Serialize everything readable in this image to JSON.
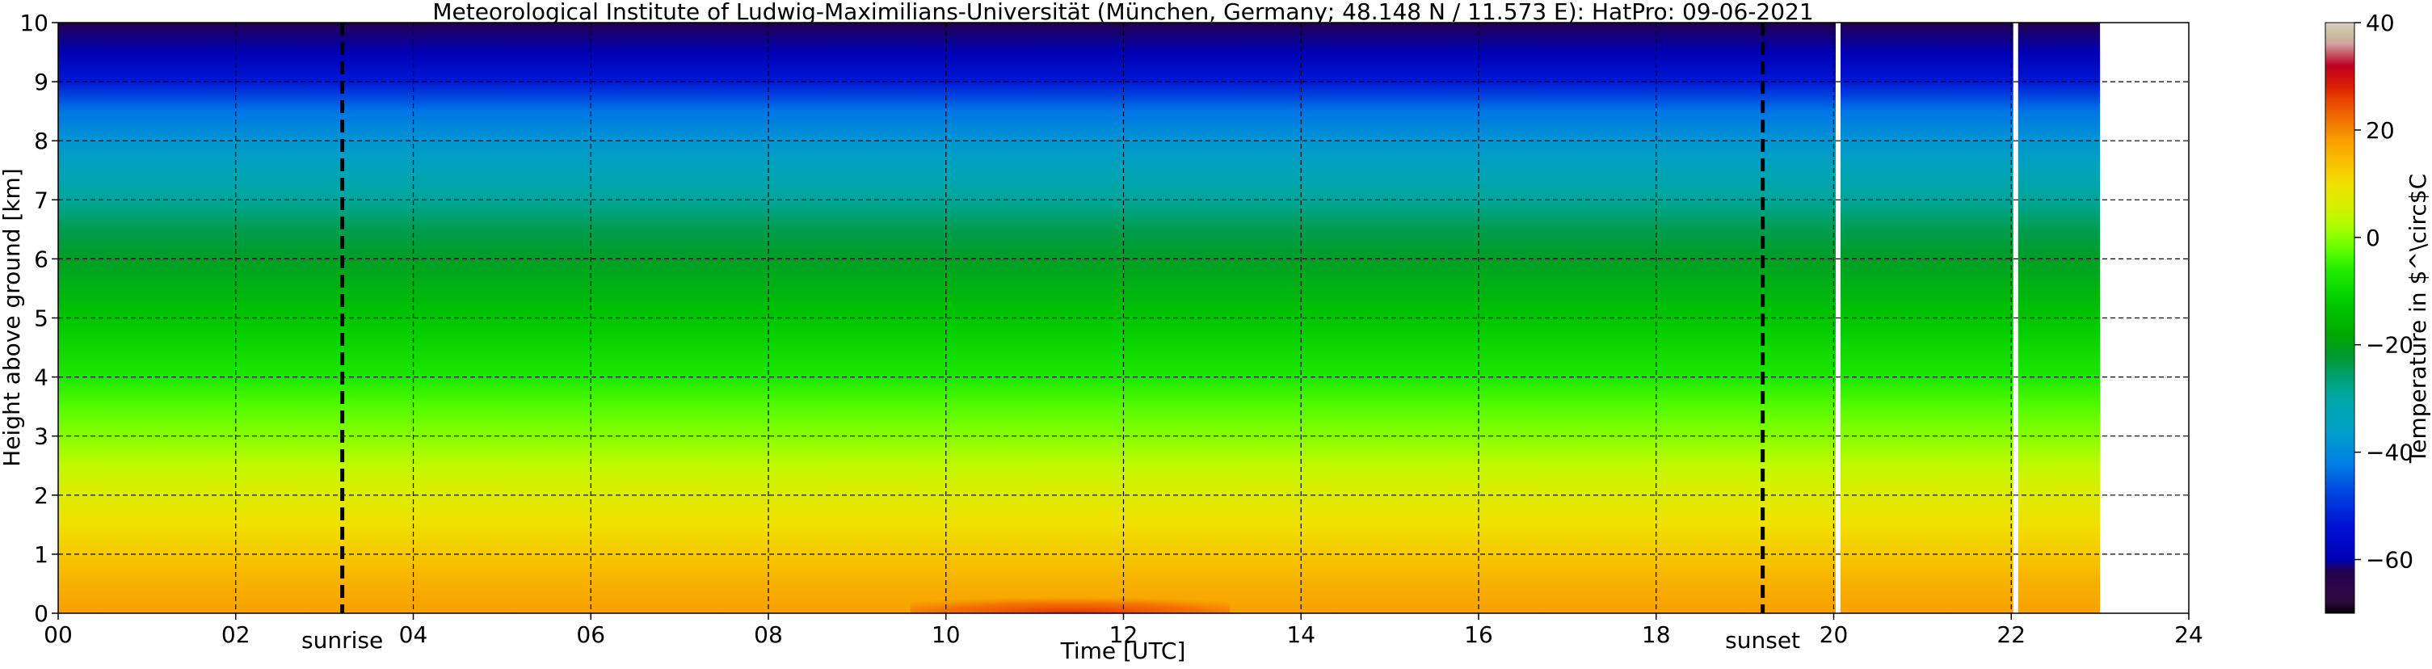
{
  "chart_data": {
    "type": "heatmap",
    "title": "Meteorological Institute of Ludwig-Maximilians-Universität (München, Germany; 48.148 N / 11.573 E):    HatPro: 09-06-2021",
    "xlabel": "Time [UTC]",
    "ylabel": "Height above ground [km]",
    "xlim": [
      0,
      24
    ],
    "ylim": [
      0,
      10
    ],
    "x_ticks": [
      "00",
      "02",
      "04",
      "06",
      "08",
      "10",
      "12",
      "14",
      "16",
      "18",
      "20",
      "22",
      "24"
    ],
    "y_ticks": [
      "0",
      "1",
      "2",
      "3",
      "4",
      "5",
      "6",
      "7",
      "8",
      "9",
      "10"
    ],
    "grid": true,
    "data_end_hour": 23,
    "gaps_hours": [
      20.05,
      22.05
    ],
    "sunrise": {
      "hour": 3.2,
      "label": "sunrise"
    },
    "sunset": {
      "hour": 19.2,
      "label": "sunset"
    },
    "temperature_profile": {
      "height_km": [
        0,
        0.5,
        1,
        1.5,
        2,
        2.5,
        3,
        3.5,
        4,
        5,
        6,
        6.5,
        7,
        7.5,
        8,
        8.5,
        9,
        9.5,
        10
      ],
      "temperature_c": [
        18,
        16,
        13,
        10,
        7,
        4,
        0,
        -3,
        -7,
        -13,
        -21,
        -24,
        -29,
        -33,
        -38,
        -43,
        -53,
        -60,
        -62
      ]
    },
    "warm_surface_anomaly": {
      "x_range": [
        9.6,
        13.2
      ],
      "peak_hour": 12.3,
      "peak_c": 26,
      "max_height_km": 0.4
    },
    "colorbar": {
      "label": "Temperature in $^\\circ$C",
      "ticks": [
        "40",
        "20",
        "0",
        "−20",
        "−40",
        "−60"
      ],
      "range": [
        -70,
        40
      ]
    }
  }
}
